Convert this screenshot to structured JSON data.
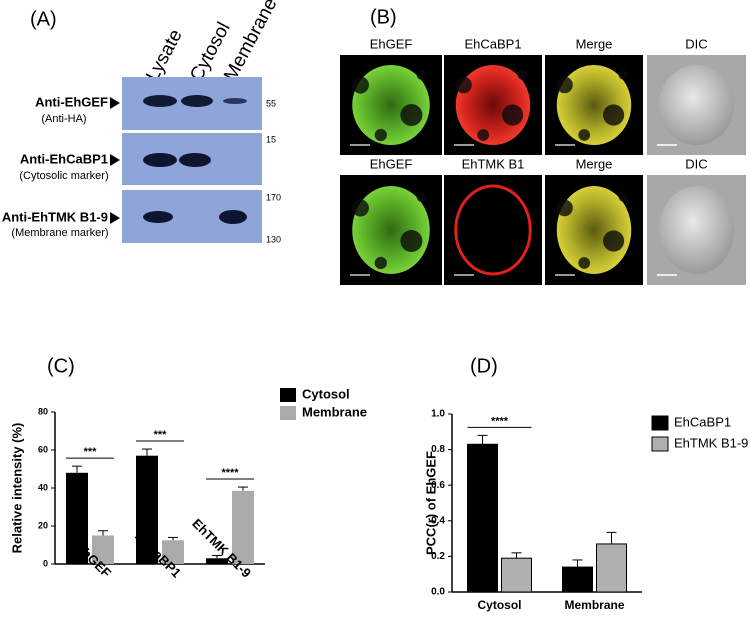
{
  "panel_a": {
    "label": "(A)",
    "columns": [
      "Lysate",
      "Cytosol",
      "Membrane"
    ],
    "rows": [
      {
        "antibody": "Anti-EhGEF",
        "note": "(Anti-HA)",
        "markers": [
          "55"
        ]
      },
      {
        "antibody": "Anti-EhCaBP1",
        "note": "(Cytosolic marker)",
        "markers": [
          "15"
        ]
      },
      {
        "antibody": "Anti-EhTMK B1-9",
        "note": "(Membrane marker)",
        "markers": [
          "170",
          "130"
        ]
      }
    ]
  },
  "panel_b": {
    "label": "(B)",
    "rows": [
      [
        "EhGEF",
        "EhCaBP1",
        "Merge",
        "DIC"
      ],
      [
        "EhGEF",
        "EhTMK B1",
        "Merge",
        "DIC"
      ]
    ]
  },
  "chart_data": [
    {
      "type": "bar",
      "label": "(C)",
      "y_label": "Relative intensity (%)",
      "categories": [
        "EhGEF",
        "EhCaBP1",
        "EhTMK B1-9"
      ],
      "series": [
        {
          "name": "Cytosol",
          "color": "#000000",
          "values": [
            48,
            57,
            3
          ],
          "errors": [
            3.5,
            3.5,
            1.5
          ]
        },
        {
          "name": "Membrane",
          "color": "#aaaaaa",
          "values": [
            15,
            12.5,
            38.5
          ],
          "errors": [
            2.5,
            1.5,
            2
          ]
        }
      ],
      "significance": [
        "***",
        "***",
        "****"
      ],
      "ylim": [
        0,
        80
      ],
      "yticks": [
        0,
        20,
        40,
        60,
        80
      ]
    },
    {
      "type": "bar",
      "label": "(D)",
      "y_label": "PCC(r) of EhGEF",
      "categories": [
        "Cytosol",
        "Membrane"
      ],
      "series": [
        {
          "name": "EhCaBP1",
          "color": "#000000",
          "values": [
            0.83,
            0.14
          ],
          "errors": [
            0.05,
            0.04
          ]
        },
        {
          "name": "EhTMK B1-9",
          "color": "#b0b0b0",
          "values": [
            0.19,
            0.27
          ],
          "errors": [
            0.03,
            0.065
          ]
        }
      ],
      "significance": [
        "****",
        null
      ],
      "ylim": [
        0,
        1
      ],
      "yticks": [
        {
          "value": 0,
          "label": "0.0"
        },
        0.2,
        0.4,
        0.6,
        0.8,
        {
          "value": 1,
          "label": "1.0"
        }
      ]
    }
  ]
}
